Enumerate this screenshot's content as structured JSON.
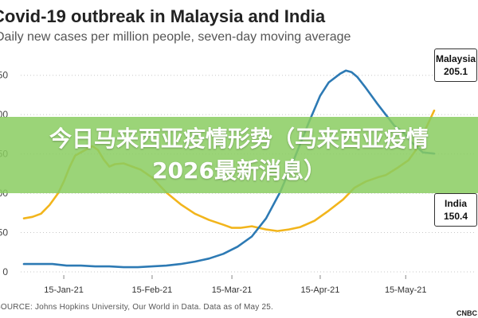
{
  "chart_data": {
    "type": "line",
    "title": "Covid-19 outbreak in Malaysia and India",
    "subtitle": "Daily new cases per million people, seven-day moving average",
    "y_ticks": [
      "250",
      "200",
      "150",
      "100",
      "50",
      "0"
    ],
    "x_ticks": [
      "15-Jan-21",
      "15-Feb-21",
      "15-Mar-21",
      "15-Apr-21",
      "15-May-21"
    ],
    "ylim": [
      0,
      275
    ],
    "x_range_days": [
      0,
      144
    ],
    "grid": "horizontal dotted",
    "series": [
      {
        "name": "Malaysia",
        "color": "#f2b51c",
        "end_label": "205.1",
        "points": [
          [
            0,
            68
          ],
          [
            3,
            70
          ],
          [
            6,
            74
          ],
          [
            9,
            85
          ],
          [
            12,
            100
          ],
          [
            14,
            115
          ],
          [
            16,
            133
          ],
          [
            18,
            148
          ],
          [
            20,
            152
          ],
          [
            22,
            156
          ],
          [
            24,
            160
          ],
          [
            26,
            155
          ],
          [
            28,
            143
          ],
          [
            30,
            134
          ],
          [
            32,
            137
          ],
          [
            35,
            138
          ],
          [
            38,
            134
          ],
          [
            41,
            130
          ],
          [
            45,
            120
          ],
          [
            50,
            101
          ],
          [
            55,
            86
          ],
          [
            60,
            74
          ],
          [
            65,
            66
          ],
          [
            70,
            60
          ],
          [
            73,
            56
          ],
          [
            76,
            56
          ],
          [
            80,
            58
          ],
          [
            85,
            54
          ],
          [
            89,
            52
          ],
          [
            93,
            54
          ],
          [
            97,
            57
          ],
          [
            102,
            65
          ],
          [
            107,
            78
          ],
          [
            112,
            92
          ],
          [
            116,
            107
          ],
          [
            120,
            115
          ],
          [
            124,
            120
          ],
          [
            127,
            123
          ],
          [
            131,
            132
          ],
          [
            135,
            142
          ],
          [
            138,
            157
          ],
          [
            141,
            182
          ],
          [
            144,
            205.1
          ]
        ]
      },
      {
        "name": "India",
        "color": "#2d7ab4",
        "end_label": "150.4",
        "points": [
          [
            0,
            10
          ],
          [
            5,
            10
          ],
          [
            10,
            10
          ],
          [
            15,
            8
          ],
          [
            20,
            8
          ],
          [
            25,
            7
          ],
          [
            30,
            7
          ],
          [
            35,
            6
          ],
          [
            40,
            6
          ],
          [
            45,
            7
          ],
          [
            50,
            8
          ],
          [
            55,
            10
          ],
          [
            60,
            13
          ],
          [
            65,
            17
          ],
          [
            70,
            23
          ],
          [
            75,
            32
          ],
          [
            80,
            45
          ],
          [
            85,
            68
          ],
          [
            90,
            102
          ],
          [
            95,
            145
          ],
          [
            100,
            190
          ],
          [
            104,
            224
          ],
          [
            107,
            241
          ],
          [
            111,
            252
          ],
          [
            113,
            256
          ],
          [
            115,
            254
          ],
          [
            117,
            248
          ],
          [
            120,
            234
          ],
          [
            124,
            214
          ],
          [
            127,
            200
          ],
          [
            130,
            186
          ],
          [
            133,
            178
          ],
          [
            136,
            165
          ],
          [
            140,
            152
          ],
          [
            144,
            150.4
          ]
        ]
      }
    ]
  },
  "overlay_text": "今日马来西亚疫情形势（马来西亚疫情2026最新消息）",
  "source_text": "SOURCE: Johns Hopkins University, Our World in Data. Data as of May 25.",
  "logo_text": "CNBC"
}
